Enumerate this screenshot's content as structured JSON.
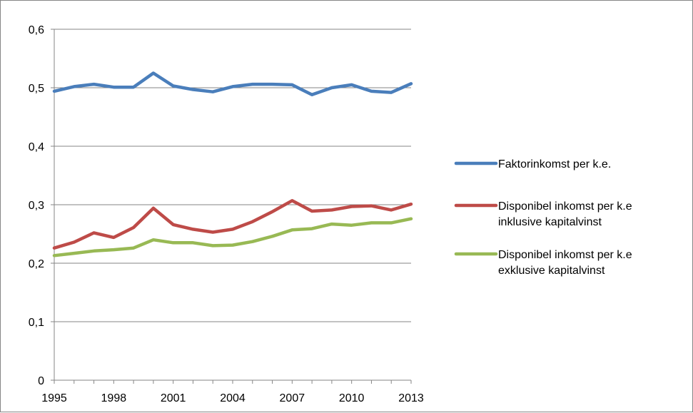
{
  "chart_data": {
    "type": "line",
    "title": "",
    "xlabel": "",
    "ylabel": "",
    "ylim": [
      0,
      0.6
    ],
    "grid": true,
    "legend_placement": "right",
    "y_ticks": [
      "0",
      "0,1",
      "0,2",
      "0,3",
      "0,4",
      "0,5",
      "0,6"
    ],
    "y_tick_values": [
      0,
      0.1,
      0.2,
      0.3,
      0.4,
      0.5,
      0.6
    ],
    "x_ticks": [
      "1995",
      "1998",
      "2001",
      "2004",
      "2007",
      "2010",
      "2013"
    ],
    "x": [
      1995,
      1996,
      1997,
      1998,
      1999,
      2000,
      2001,
      2002,
      2003,
      2004,
      2005,
      2006,
      2007,
      2008,
      2009,
      2010,
      2011,
      2012,
      2013
    ],
    "series": [
      {
        "name_lines": [
          "Faktorinkomst per k.e."
        ],
        "color": "#4a7ebb",
        "values": [
          0.494,
          0.502,
          0.506,
          0.501,
          0.501,
          0.525,
          0.503,
          0.497,
          0.493,
          0.502,
          0.506,
          0.506,
          0.505,
          0.488,
          0.5,
          0.505,
          0.494,
          0.492,
          0.507
        ]
      },
      {
        "name_lines": [
          "Disponibel inkomst per k.e",
          "inklusive kapitalvinst"
        ],
        "color": "#be4b48",
        "values": [
          0.226,
          0.236,
          0.252,
          0.244,
          0.261,
          0.294,
          0.266,
          0.258,
          0.253,
          0.258,
          0.271,
          0.288,
          0.307,
          0.289,
          0.291,
          0.297,
          0.298,
          0.291,
          0.301
        ]
      },
      {
        "name_lines": [
          "Disponibel inkomst per k.e",
          "exklusive kapitalvinst"
        ],
        "color": "#98b954",
        "values": [
          0.213,
          0.217,
          0.221,
          0.223,
          0.226,
          0.24,
          0.235,
          0.235,
          0.23,
          0.231,
          0.237,
          0.246,
          0.257,
          0.259,
          0.267,
          0.265,
          0.269,
          0.269,
          0.276
        ]
      }
    ]
  }
}
